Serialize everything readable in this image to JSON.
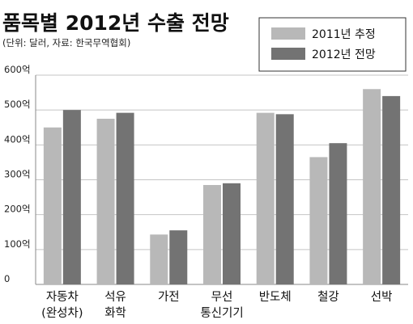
{
  "chart_data": {
    "type": "bar",
    "title": "품목별 2012년 수출 전망",
    "subtitle": "(단위: 달러, 자료: 한국무역협회)",
    "ylim": [
      0,
      600
    ],
    "yticks": [
      {
        "value": 0,
        "label": "0"
      },
      {
        "value": 100,
        "label": "100억"
      },
      {
        "value": 200,
        "label": "200억"
      },
      {
        "value": 300,
        "label": "300억"
      },
      {
        "value": 400,
        "label": "400억"
      },
      {
        "value": 500,
        "label": "500억"
      },
      {
        "value": 600,
        "label": "600억"
      }
    ],
    "grid": true,
    "legend_position": "top-right",
    "categories": [
      {
        "line1": "자동차",
        "line2": "(완성차)"
      },
      {
        "line1": "석유",
        "line2": "화학"
      },
      {
        "line1": "가전",
        "line2": ""
      },
      {
        "line1": "무선",
        "line2": "통신기기"
      },
      {
        "line1": "반도체",
        "line2": ""
      },
      {
        "line1": "철강",
        "line2": ""
      },
      {
        "line1": "선박",
        "line2": ""
      }
    ],
    "series": [
      {
        "name": "2011년 추정",
        "color": "#b8b8b8",
        "values": [
          450,
          475,
          143,
          285,
          492,
          365,
          560
        ]
      },
      {
        "name": "2012년 전망",
        "color": "#737373",
        "values": [
          500,
          492,
          155,
          290,
          488,
          405,
          540
        ]
      }
    ]
  }
}
